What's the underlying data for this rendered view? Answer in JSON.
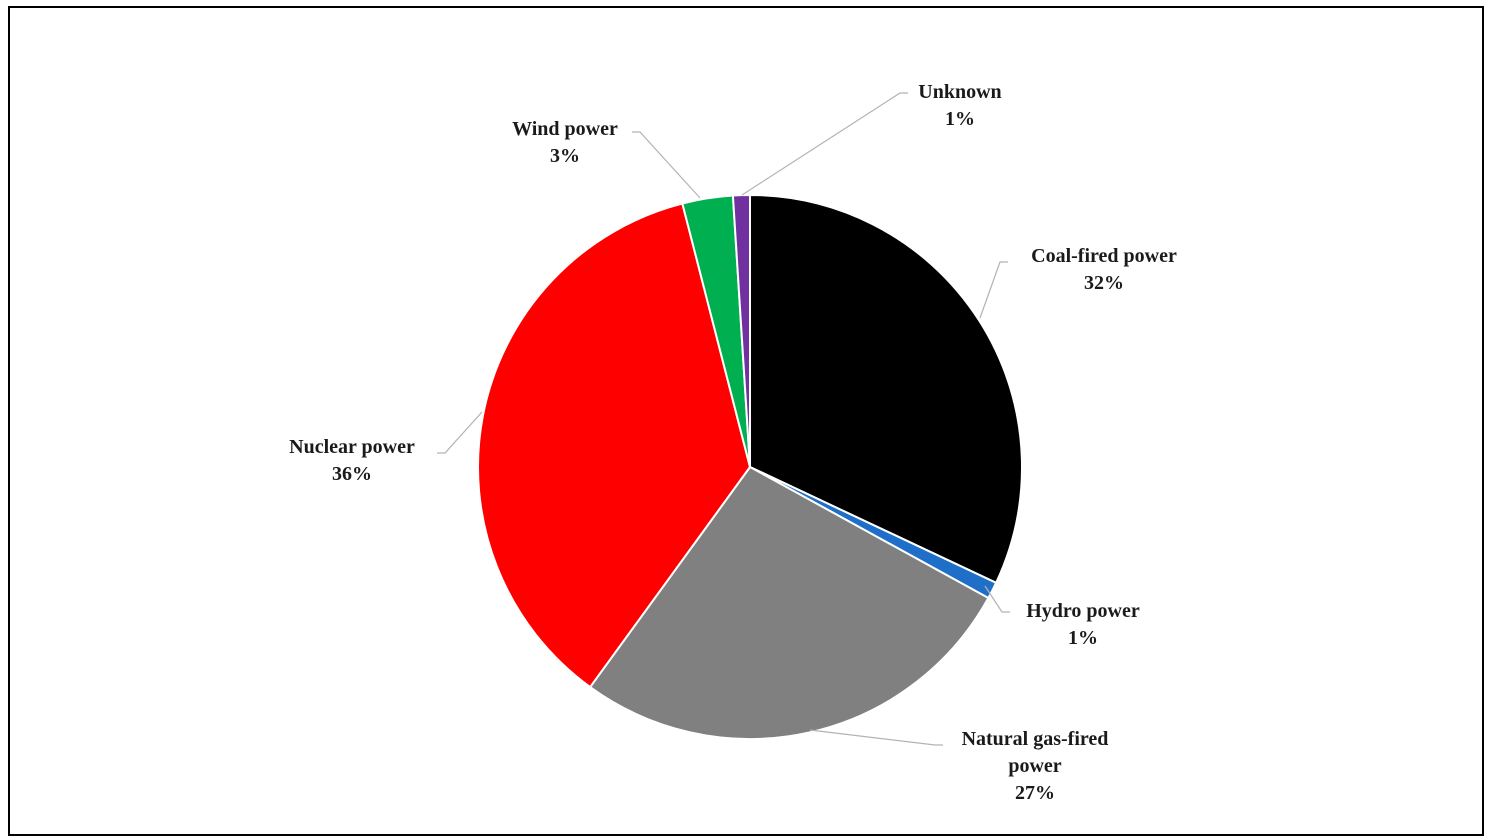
{
  "chart_data": {
    "type": "pie",
    "start_angle_deg": 0,
    "direction": "clockwise",
    "slices": [
      {
        "name": "Coal-fired power",
        "value": 32,
        "label_lines": [
          "Coal-fired power"
        ],
        "percent_label": "32%",
        "color": "#000000"
      },
      {
        "name": "Hydro power",
        "value": 1,
        "label_lines": [
          "Hydro power"
        ],
        "percent_label": "1%",
        "color": "#1f6fc9"
      },
      {
        "name": "Natural gas-fired power",
        "value": 27,
        "label_lines": [
          "Natural gas-fired",
          "power"
        ],
        "percent_label": "27%",
        "color": "#808080"
      },
      {
        "name": "Nuclear power",
        "value": 36,
        "label_lines": [
          "Nuclear power"
        ],
        "percent_label": "36%",
        "color": "#ff0000"
      },
      {
        "name": "Wind power",
        "value": 3,
        "label_lines": [
          "Wind power"
        ],
        "percent_label": "3%",
        "color": "#00b050"
      },
      {
        "name": "Unknown",
        "value": 1,
        "label_lines": [
          "Unknown"
        ],
        "percent_label": "1%",
        "color": "#7030a0"
      }
    ],
    "data_labels": "outside-with-leader-lines",
    "legend": "none",
    "title": ""
  }
}
